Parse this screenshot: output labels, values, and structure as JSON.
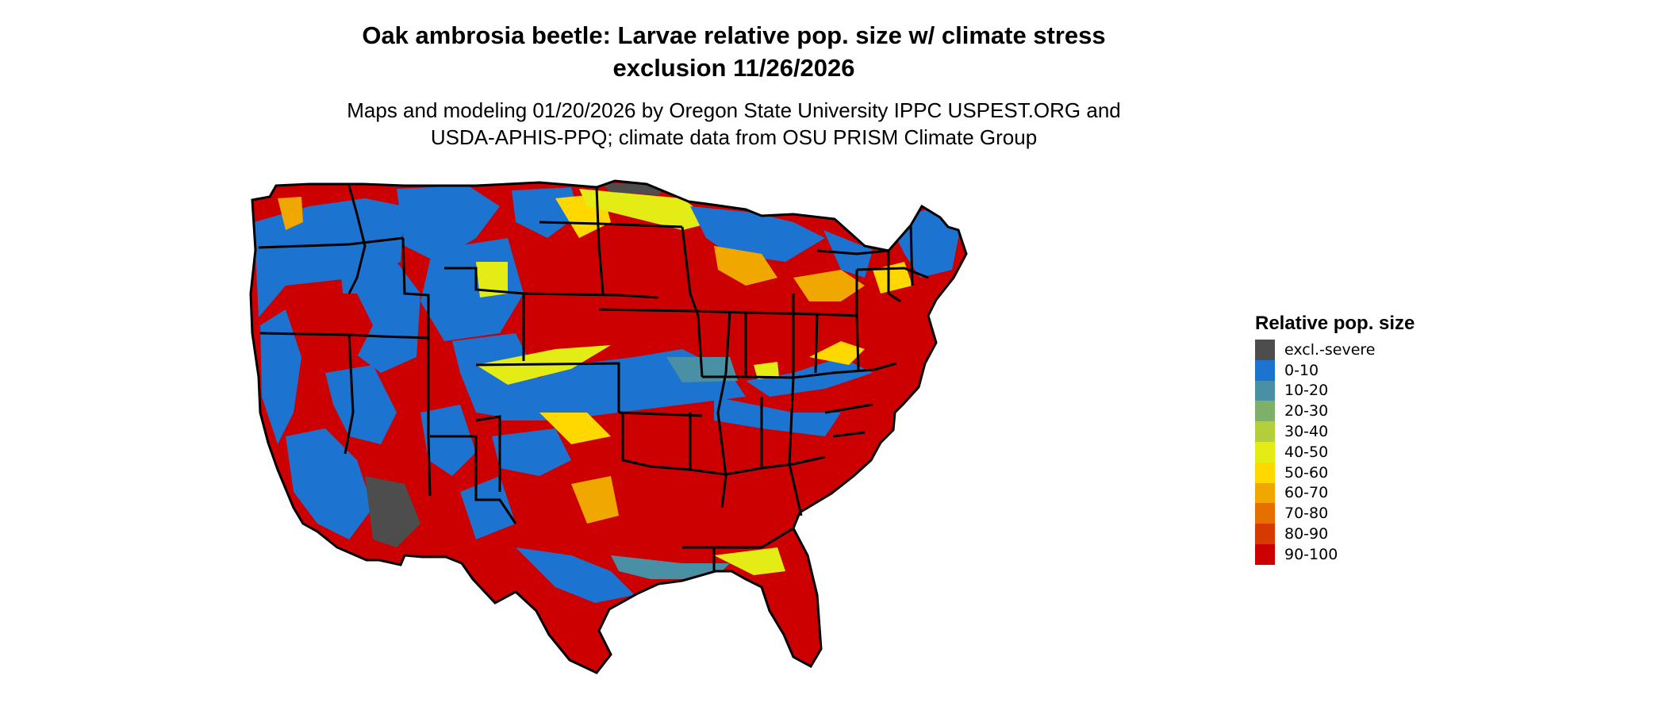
{
  "title_line1": "Oak ambrosia beetle: Larvae relative pop. size w/ climate stress",
  "title_line2": "exclusion 11/26/2026",
  "subtitle_line1": "Maps and modeling 01/20/2026 by Oregon State University IPPC USPEST.ORG and",
  "subtitle_line2": "USDA-APHIS-PPQ; climate data from OSU PRISM Climate Group",
  "legend": {
    "title": "Relative pop. size",
    "items": [
      {
        "label": "excl.-severe",
        "color": "#4d4d4d"
      },
      {
        "label": "0-10",
        "color": "#1c74d0"
      },
      {
        "label": "10-20",
        "color": "#4a90a4"
      },
      {
        "label": "20-30",
        "color": "#7fb06a"
      },
      {
        "label": "30-40",
        "color": "#b5cf3b"
      },
      {
        "label": "40-50",
        "color": "#e3ec14"
      },
      {
        "label": "50-60",
        "color": "#ffd800"
      },
      {
        "label": "60-70",
        "color": "#f0a800"
      },
      {
        "label": "70-80",
        "color": "#e57000"
      },
      {
        "label": "80-90",
        "color": "#d73a00"
      },
      {
        "label": "90-100",
        "color": "#cc0000"
      }
    ]
  }
}
